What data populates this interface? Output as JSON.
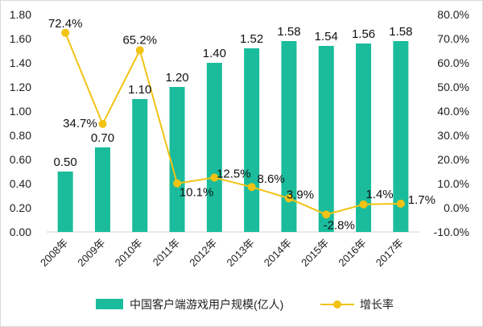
{
  "chart_data": {
    "type": "bar",
    "categories": [
      "2008年",
      "2009年",
      "2010年",
      "2011年",
      "2012年",
      "2013年",
      "2014年",
      "2015年",
      "2016年",
      "2017年"
    ],
    "series": [
      {
        "name": "中国客户端游戏用户规模(亿人)",
        "chart_type": "bar",
        "axis": "left",
        "color": "#1abc9c",
        "values": [
          0.5,
          0.7,
          1.1,
          1.2,
          1.4,
          1.52,
          1.58,
          1.54,
          1.56,
          1.58
        ],
        "labels": [
          "0.50",
          "0.70",
          "1.10",
          "1.20",
          "1.40",
          "1.52",
          "1.58",
          "1.54",
          "1.56",
          "1.58"
        ]
      },
      {
        "name": "增长率",
        "chart_type": "line",
        "axis": "right",
        "color": "#f2c314",
        "values": [
          72.4,
          34.7,
          65.2,
          10.1,
          12.5,
          8.6,
          3.9,
          -2.8,
          1.4,
          1.7
        ],
        "labels": [
          "72.4%",
          "34.7%",
          "65.2%",
          "10.1%",
          "12.5%",
          "8.6%",
          "3.9%",
          "-2.8%",
          "1.4%",
          "1.7%"
        ]
      }
    ],
    "y_left": {
      "ylim": [
        0,
        1.8
      ],
      "ticks": [
        0,
        0.2,
        0.4,
        0.6,
        0.8,
        1.0,
        1.2,
        1.4,
        1.6,
        1.8
      ],
      "tick_labels": [
        "0.00",
        "0.20",
        "0.40",
        "0.60",
        "0.80",
        "1.00",
        "1.20",
        "1.40",
        "1.60",
        "1.80"
      ]
    },
    "y_right": {
      "ylim": [
        -10,
        80
      ],
      "ticks": [
        -10,
        0,
        10,
        20,
        30,
        40,
        50,
        60,
        70,
        80
      ],
      "tick_labels": [
        "-10.0%",
        "0.0%",
        "10.0%",
        "20.0%",
        "30.0%",
        "40.0%",
        "50.0%",
        "60.0%",
        "70.0%",
        "80.0%"
      ]
    },
    "grid": false,
    "legend_position": "bottom"
  }
}
